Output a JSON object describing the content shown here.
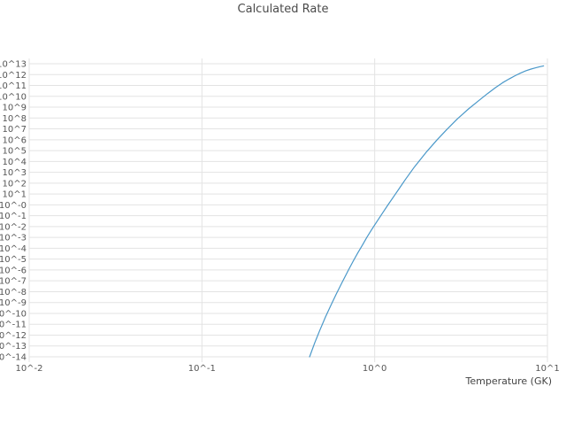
{
  "chart_data": {
    "type": "line",
    "title": "Calculated Rate",
    "xlabel": "Temperature (GK)",
    "ylabel": "",
    "x_scale": "log",
    "y_scale": "log",
    "x_range_log10": [
      -2,
      1
    ],
    "y_range_log10": [
      -14,
      13
    ],
    "grid": true,
    "legend": "none",
    "x_ticks": [
      {
        "label": "10^-2",
        "log10": -2
      },
      {
        "label": "10^-1",
        "log10": -1
      },
      {
        "label": "10^0",
        "log10": 0
      },
      {
        "label": "10^1",
        "log10": 1
      }
    ],
    "y_ticks": [
      {
        "label": "10^13",
        "log10": 13
      },
      {
        "label": "10^12",
        "log10": 12
      },
      {
        "label": "10^11",
        "log10": 11
      },
      {
        "label": "10^10",
        "log10": 10
      },
      {
        "label": "10^9",
        "log10": 9
      },
      {
        "label": "10^8",
        "log10": 8
      },
      {
        "label": "10^7",
        "log10": 7
      },
      {
        "label": "10^6",
        "log10": 6
      },
      {
        "label": "10^5",
        "log10": 5
      },
      {
        "label": "10^4",
        "log10": 4
      },
      {
        "label": "10^3",
        "log10": 3
      },
      {
        "label": "10^2",
        "log10": 2
      },
      {
        "label": "10^1",
        "log10": 1
      },
      {
        "label": "10^-0",
        "log10": 0
      },
      {
        "label": "10^-1",
        "log10": -1
      },
      {
        "label": "10^-2",
        "log10": -2
      },
      {
        "label": "10^-3",
        "log10": -3
      },
      {
        "label": "10^-4",
        "log10": -4
      },
      {
        "label": "10^-5",
        "log10": -5
      },
      {
        "label": "10^-6",
        "log10": -6
      },
      {
        "label": "10^-7",
        "log10": -7
      },
      {
        "label": "10^-8",
        "log10": -8
      },
      {
        "label": "10^-9",
        "log10": -9
      },
      {
        "label": "10^-10",
        "log10": -10
      },
      {
        "label": "10^-11",
        "log10": -11
      },
      {
        "label": "10^-12",
        "log10": -12
      },
      {
        "label": "10^-13",
        "log10": -13
      },
      {
        "label": "10^-14",
        "log10": -14
      }
    ],
    "series": [
      {
        "name": "calculated-rate",
        "color": "#4a98c9",
        "x_gk": [
          0.42,
          0.45,
          0.48,
          0.52,
          0.56,
          0.6,
          0.65,
          0.7,
          0.75,
          0.8,
          0.85,
          0.9,
          0.95,
          1.0,
          1.1,
          1.2,
          1.3,
          1.4,
          1.5,
          1.7,
          2.0,
          2.3,
          2.6,
          3.0,
          3.5,
          4.0,
          4.5,
          5.0,
          5.5,
          6.0,
          6.5,
          7.0,
          7.5,
          8.0,
          8.5,
          9.0,
          9.5
        ],
        "log10_rate": [
          -14.0,
          -12.7,
          -11.6,
          -10.3,
          -9.2,
          -8.2,
          -7.1,
          -6.1,
          -5.2,
          -4.4,
          -3.7,
          -3.0,
          -2.4,
          -1.85,
          -0.85,
          0.05,
          0.85,
          1.6,
          2.3,
          3.5,
          4.9,
          6.0,
          6.9,
          7.9,
          8.85,
          9.6,
          10.25,
          10.8,
          11.25,
          11.6,
          11.9,
          12.15,
          12.35,
          12.5,
          12.62,
          12.72,
          12.8
        ]
      }
    ],
    "colors": {
      "gridline": "#e3e3e3",
      "tick_text": "#555555",
      "title_text": "#4a4a4a",
      "background": "#ffffff"
    }
  }
}
